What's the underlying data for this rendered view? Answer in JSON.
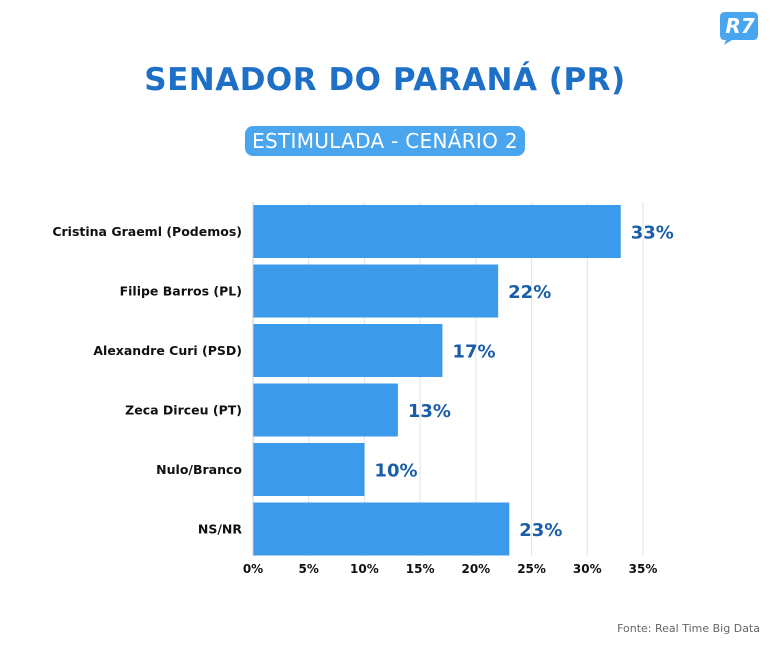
{
  "branding": {
    "logo_text": "R7",
    "logo_color": "#4aa5ef"
  },
  "chart_data": {
    "type": "bar",
    "orientation": "horizontal",
    "title": "SENADOR DO PARANÁ (PR)",
    "subtitle": "ESTIMULADA - CENÁRIO 2",
    "categories": [
      "Cristina Graeml (Podemos)",
      "Filipe Barros (PL)",
      "Alexandre Curi (PSD)",
      "Zeca Dirceu (PT)",
      "Nulo/Branco",
      "NS/NR"
    ],
    "values": [
      33,
      22,
      17,
      13,
      10,
      23
    ],
    "value_labels": [
      "33%",
      "22%",
      "17%",
      "13%",
      "10%",
      "23%"
    ],
    "xlim": [
      0,
      35
    ],
    "x_ticks": [
      0,
      5,
      10,
      15,
      20,
      25,
      30,
      35
    ],
    "x_tick_labels": [
      "0%",
      "5%",
      "10%",
      "15%",
      "20%",
      "25%",
      "30%",
      "35%"
    ],
    "grid": "vertical",
    "bar_color": "#3b9ae9",
    "label_color": "#1b5ea8"
  },
  "source": "Fonte: Real Time Big Data"
}
